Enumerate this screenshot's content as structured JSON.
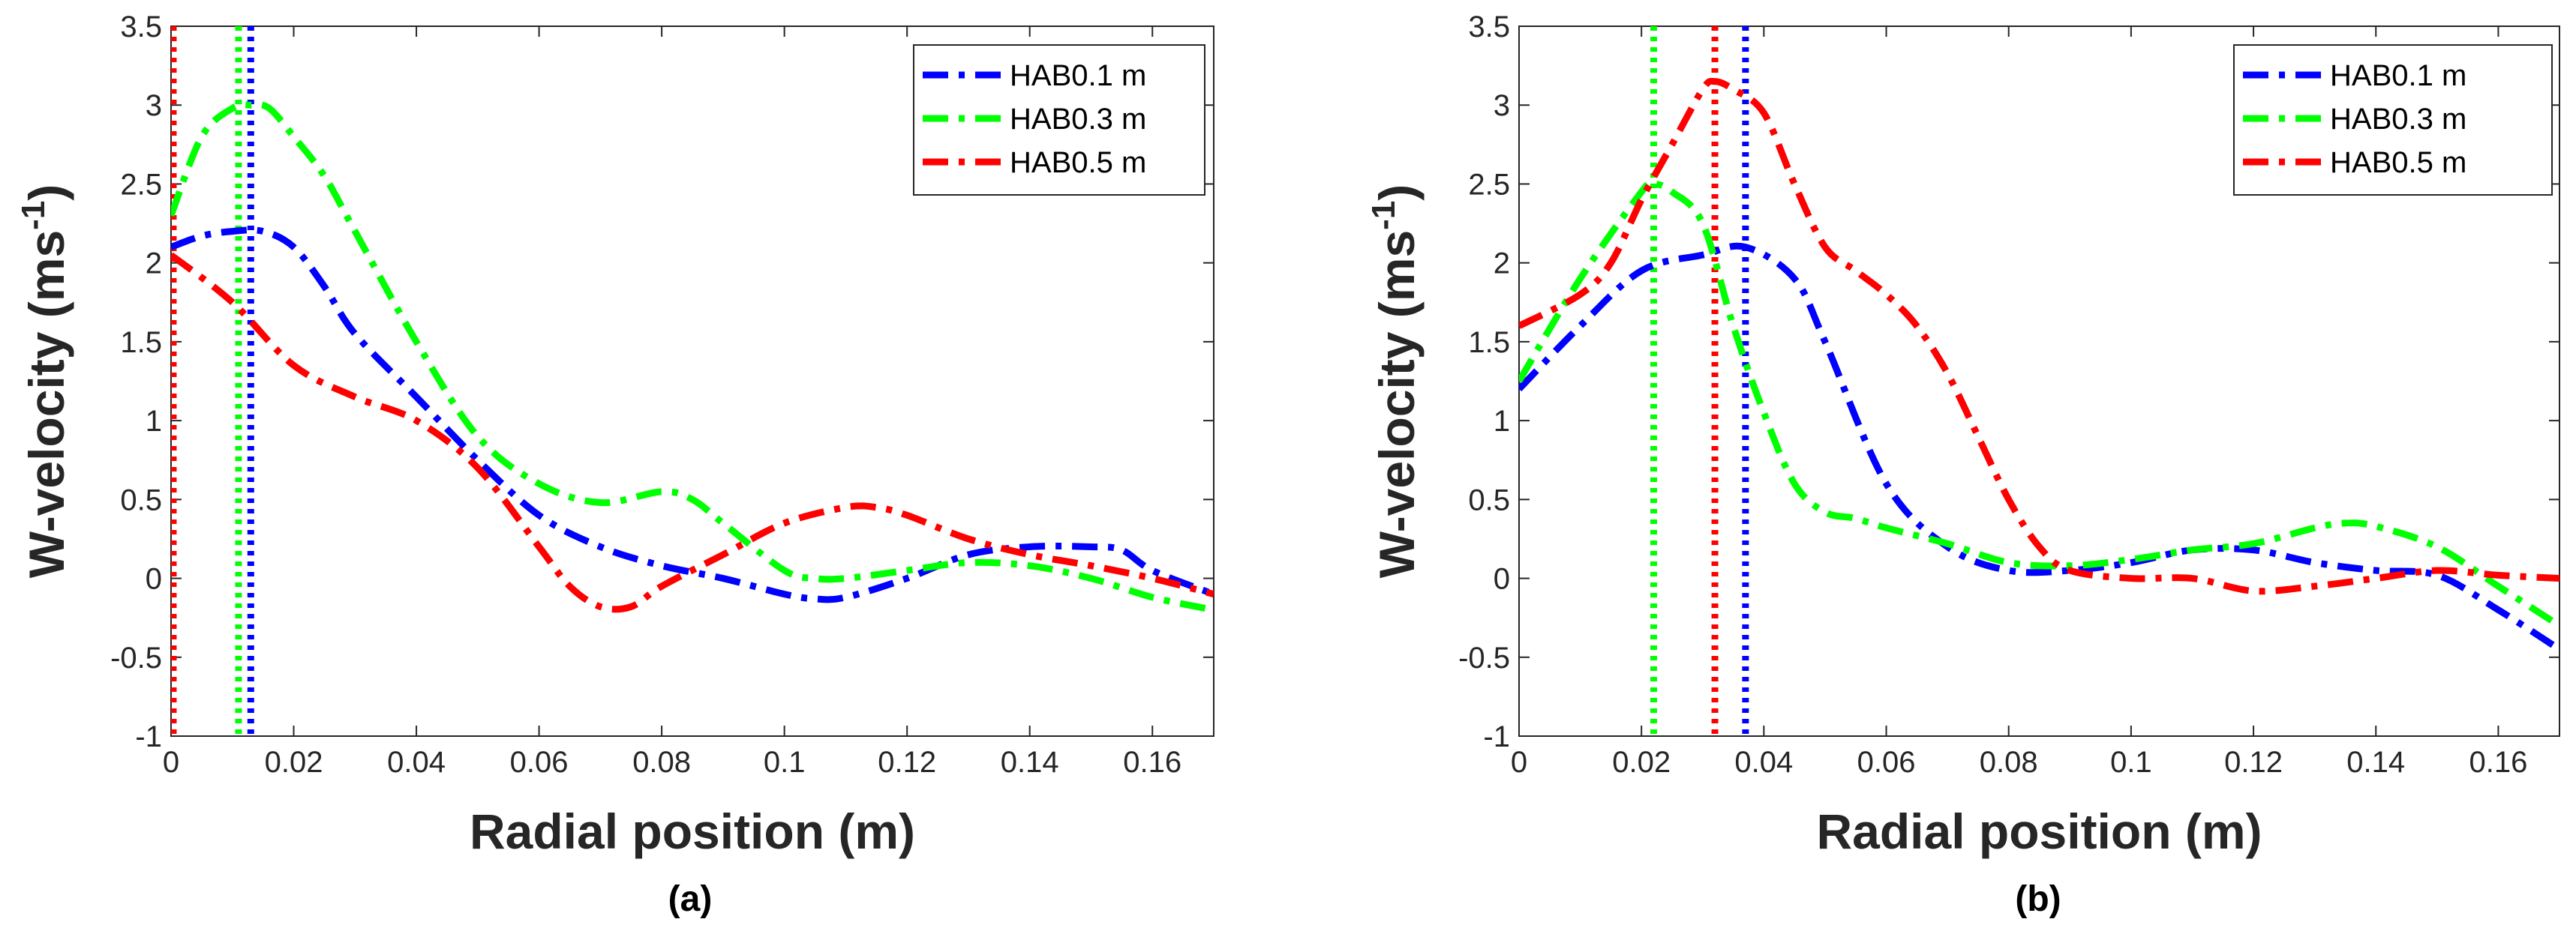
{
  "chart_data": [
    {
      "type": "line",
      "panel_label": "(a)",
      "xlabel": "Radial position (m)",
      "ylabel_main": "W-velocity (ms",
      "ylabel_sup": "-1",
      "ylabel_close": ")",
      "xlim": [
        0,
        0.17
      ],
      "ylim": [
        -1,
        3.5
      ],
      "xticks": [
        0,
        0.02,
        0.04,
        0.06,
        0.08,
        0.1,
        0.12,
        0.14,
        0.16
      ],
      "xtick_labels": [
        "0",
        "0.02",
        "0.04",
        "0.06",
        "0.08",
        "0.1",
        "0.12",
        "0.14",
        "0.16"
      ],
      "yticks": [
        -1,
        -0.5,
        0,
        0.5,
        1,
        1.5,
        2,
        2.5,
        3,
        3.5
      ],
      "ytick_labels": [
        "-1",
        "-0.5",
        "0",
        "0.5",
        "1",
        "1.5",
        "2",
        "2.5",
        "3",
        "3.5"
      ],
      "legend_position": "top-right",
      "series": [
        {
          "name": "HAB0.1 m",
          "color": "#0000ff",
          "x": [
            0,
            0.005,
            0.01,
            0.015,
            0.02,
            0.025,
            0.03,
            0.04,
            0.05,
            0.06,
            0.07,
            0.08,
            0.09,
            0.1,
            0.105,
            0.11,
            0.12,
            0.13,
            0.14,
            0.15,
            0.155,
            0.16,
            0.17
          ],
          "y": [
            2.1,
            2.17,
            2.2,
            2.2,
            2.1,
            1.85,
            1.55,
            1.15,
            0.75,
            0.4,
            0.2,
            0.08,
            0.0,
            -0.1,
            -0.13,
            -0.12,
            0.0,
            0.15,
            0.2,
            0.2,
            0.18,
            0.05,
            -0.1
          ]
        },
        {
          "name": "HAB0.3 m",
          "color": "#00ff00",
          "x": [
            0,
            0.005,
            0.01,
            0.013,
            0.016,
            0.02,
            0.025,
            0.03,
            0.04,
            0.05,
            0.06,
            0.07,
            0.08,
            0.085,
            0.09,
            0.1,
            0.105,
            0.11,
            0.12,
            0.13,
            0.14,
            0.15,
            0.16,
            0.17
          ],
          "y": [
            2.3,
            2.8,
            2.98,
            3.0,
            2.98,
            2.8,
            2.55,
            2.2,
            1.5,
            0.9,
            0.6,
            0.48,
            0.55,
            0.5,
            0.35,
            0.05,
            0.0,
            0.0,
            0.05,
            0.1,
            0.08,
            0.0,
            -0.12,
            -0.2
          ]
        },
        {
          "name": "HAB0.5 m",
          "color": "#ff0000",
          "x": [
            0,
            0.01,
            0.02,
            0.03,
            0.04,
            0.05,
            0.06,
            0.065,
            0.07,
            0.075,
            0.08,
            0.09,
            0.1,
            0.11,
            0.115,
            0.12,
            0.13,
            0.14,
            0.15,
            0.16,
            0.17
          ],
          "y": [
            2.05,
            1.75,
            1.35,
            1.15,
            1.0,
            0.7,
            0.2,
            -0.05,
            -0.18,
            -0.18,
            -0.05,
            0.15,
            0.35,
            0.45,
            0.45,
            0.4,
            0.25,
            0.15,
            0.08,
            0.0,
            -0.1
          ]
        }
      ],
      "vertical_markers": [
        {
          "x": 0.0,
          "color": "#ff0000"
        },
        {
          "x": 0.011,
          "color": "#00ff00"
        },
        {
          "x": 0.013,
          "color": "#0000ff"
        }
      ]
    },
    {
      "type": "line",
      "panel_label": "(b)",
      "xlabel": "Radial position (m)",
      "ylabel_main": "W-velocity (ms",
      "ylabel_sup": "-1",
      "ylabel_close": ")",
      "xlim": [
        0,
        0.17
      ],
      "ylim": [
        -1,
        3.5
      ],
      "xticks": [
        0,
        0.02,
        0.04,
        0.06,
        0.08,
        0.1,
        0.12,
        0.14,
        0.16
      ],
      "xtick_labels": [
        "0",
        "0.02",
        "0.04",
        "0.06",
        "0.08",
        "0.1",
        "0.12",
        "0.14",
        "0.16"
      ],
      "yticks": [
        -1,
        -0.5,
        0,
        0.5,
        1,
        1.5,
        2,
        2.5,
        3,
        3.5
      ],
      "ytick_labels": [
        "-1",
        "-0.5",
        "0",
        "0.5",
        "1",
        "1.5",
        "2",
        "2.5",
        "3",
        "3.5"
      ],
      "legend_position": "top-right",
      "series": [
        {
          "name": "HAB0.1 m",
          "color": "#0000ff",
          "x": [
            0,
            0.01,
            0.02,
            0.03,
            0.037,
            0.045,
            0.05,
            0.06,
            0.07,
            0.08,
            0.09,
            0.1,
            0.11,
            0.12,
            0.13,
            0.14,
            0.15,
            0.16,
            0.17
          ],
          "y": [
            1.2,
            1.6,
            1.95,
            2.05,
            2.1,
            1.9,
            1.5,
            0.6,
            0.2,
            0.05,
            0.05,
            0.1,
            0.18,
            0.18,
            0.1,
            0.05,
            0.02,
            -0.2,
            -0.45
          ]
        },
        {
          "name": "HAB0.3 m",
          "color": "#00ff00",
          "x": [
            0,
            0.01,
            0.02,
            0.022,
            0.025,
            0.03,
            0.035,
            0.04,
            0.045,
            0.05,
            0.055,
            0.06,
            0.07,
            0.08,
            0.09,
            0.1,
            0.11,
            0.12,
            0.13,
            0.135,
            0.14,
            0.15,
            0.16,
            0.17
          ],
          "y": [
            1.25,
            1.9,
            2.45,
            2.5,
            2.45,
            2.25,
            1.6,
            1.05,
            0.6,
            0.42,
            0.38,
            0.32,
            0.22,
            0.1,
            0.08,
            0.12,
            0.18,
            0.22,
            0.32,
            0.35,
            0.33,
            0.2,
            -0.05,
            -0.3
          ]
        },
        {
          "name": "HAB0.5 m",
          "color": "#ff0000",
          "x": [
            0,
            0.01,
            0.015,
            0.02,
            0.025,
            0.03,
            0.032,
            0.035,
            0.04,
            0.045,
            0.05,
            0.055,
            0.06,
            0.065,
            0.07,
            0.075,
            0.08,
            0.085,
            0.09,
            0.1,
            0.11,
            0.12,
            0.13,
            0.14,
            0.15,
            0.16,
            0.17
          ],
          "y": [
            1.6,
            1.8,
            2.0,
            2.4,
            2.75,
            3.1,
            3.15,
            3.1,
            2.95,
            2.5,
            2.1,
            1.95,
            1.8,
            1.6,
            1.3,
            0.9,
            0.5,
            0.2,
            0.05,
            0.0,
            0.0,
            -0.08,
            -0.05,
            0.0,
            0.05,
            0.02,
            0.0
          ]
        }
      ],
      "vertical_markers": [
        {
          "x": 0.022,
          "color": "#00ff00"
        },
        {
          "x": 0.032,
          "color": "#ff0000"
        },
        {
          "x": 0.037,
          "color": "#0000ff"
        }
      ]
    }
  ]
}
